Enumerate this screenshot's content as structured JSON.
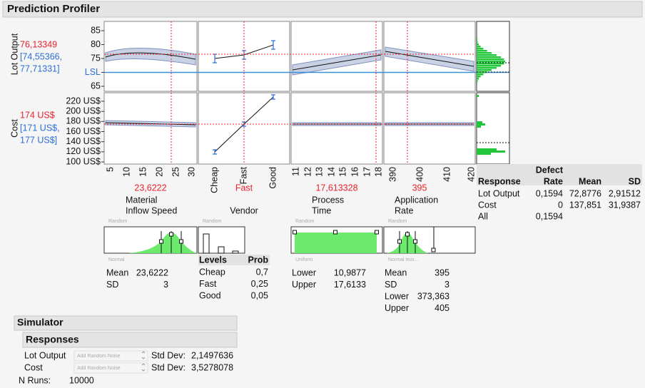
{
  "header": {
    "title": "Prediction Profiler"
  },
  "profiler": {
    "responses": [
      {
        "label": "Lot Output",
        "value": "76,13349",
        "interval": [
          "[74,55366,",
          "77,71331]"
        ],
        "ticks": [
          "85",
          "80",
          "75",
          "LSL",
          "65"
        ]
      },
      {
        "label": "Cost",
        "value": "174 US$",
        "interval": [
          "[171 US$,",
          "177 US$]"
        ],
        "ticks": [
          "220 US$",
          "200 US$",
          "180 US$",
          "160 US$",
          "140 US$",
          "120 US$",
          "100 US$"
        ]
      }
    ],
    "factors": [
      {
        "ticks": [
          "5",
          "10",
          "15",
          "20",
          "25",
          "30"
        ],
        "current": "23,6222",
        "name": [
          "Material",
          "Inflow Speed"
        ],
        "dist_type": "Random",
        "dist": "Normal"
      },
      {
        "ticks": [
          "Cheap",
          "Fast",
          "Good"
        ],
        "current": "Fast",
        "name": [
          "Vendor"
        ],
        "dist_type": "Random"
      },
      {
        "ticks": [
          "11",
          "12",
          "13",
          "14",
          "15",
          "16",
          "17",
          "18"
        ],
        "current": "17,613328",
        "name": [
          "Process",
          "Time"
        ],
        "dist_type": "Random",
        "dist": "Uniform"
      },
      {
        "ticks": [
          "390",
          "400",
          "410",
          "420"
        ],
        "current": "395",
        "name": [
          "Application",
          "Rate"
        ],
        "dist_type": "Random",
        "dist": "Normal trun..."
      }
    ],
    "stats": {
      "material": [
        [
          "Mean",
          "23,6222"
        ],
        [
          "SD",
          "3"
        ]
      ],
      "vendor": {
        "header": [
          "Levels",
          "Prob"
        ],
        "rows": [
          [
            "Cheap",
            "0,7"
          ],
          [
            "Fast",
            "0,25"
          ],
          [
            "Good",
            "0,05"
          ]
        ]
      },
      "process": [
        [
          "Lower",
          "10,9877"
        ],
        [
          "Upper",
          "17,6133"
        ]
      ],
      "application": [
        [
          "Mean",
          "395"
        ],
        [
          "SD",
          "3"
        ],
        [
          "Lower",
          "373,363"
        ],
        [
          "Upper",
          "405"
        ]
      ]
    }
  },
  "summary": {
    "header": [
      "Response",
      "Defect",
      "Rate",
      "Mean",
      "SD"
    ],
    "rows": [
      [
        "Lot Output",
        "0,1594",
        "72,8776",
        "2,91512"
      ],
      [
        "Cost",
        "0",
        "137,851",
        "31,9387"
      ],
      [
        "All",
        "0,1594"
      ]
    ]
  },
  "simulator": {
    "title": "Simulator",
    "responses_title": "Responses",
    "rows": [
      {
        "name": "Lot Output",
        "noise": "Add Random Noise",
        "label": "Std Dev:",
        "value": "2,1497636"
      },
      {
        "name": "Cost",
        "noise": "Add Random Noise",
        "label": "Std Dev:",
        "value": "3,5278078"
      }
    ],
    "n_runs_label": "N Runs:",
    "n_runs": "10000"
  }
}
